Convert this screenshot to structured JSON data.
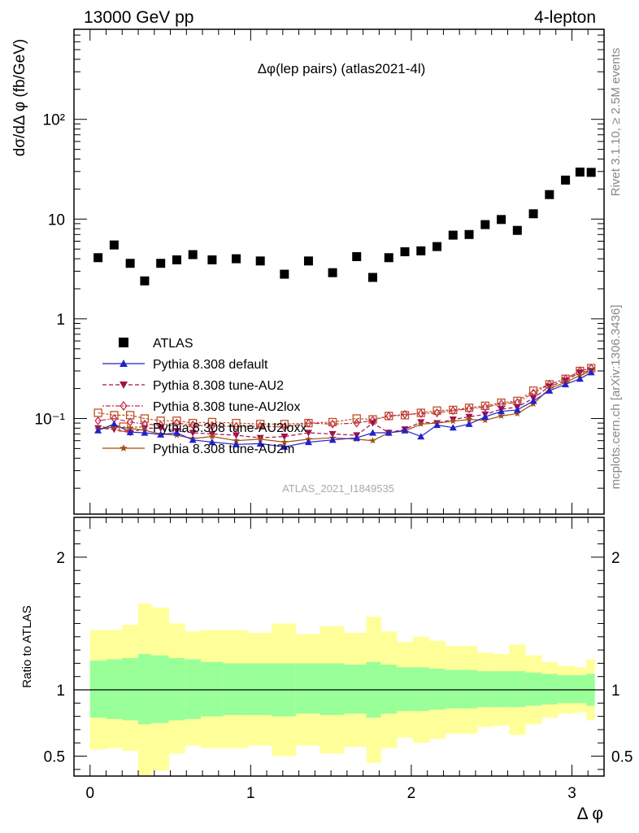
{
  "header": {
    "left": "13000 GeV pp",
    "right": "4-lepton",
    "plot_title": "Δφ(lep pairs) (atlas2021-4l)",
    "watermark": "ATLAS_2021_I1849535",
    "side_right_top": "Rivet 3.1.10, ≥ 2.5M events",
    "side_right_bottom": "mcplots.cern.ch [arXiv:1306.3436]"
  },
  "chart_data": {
    "type": "scatter",
    "xlabel": "Δ φ",
    "ylabel": "dσ/dΔ φ (fb/GeV)",
    "ratio_ylabel": "Ratio to ATLAS",
    "xlim": [
      -0.1,
      3.2
    ],
    "ylim": [
      0.011,
      800
    ],
    "yscale": "log",
    "ratio_ylim": [
      0.35,
      2.3
    ],
    "x_ticks": [
      "0",
      "1",
      "2",
      "3"
    ],
    "y_ticks": [
      "10⁻¹",
      "1",
      "10",
      "10²"
    ],
    "ratio_ticks": [
      "0.5",
      "1",
      "2"
    ],
    "legend_position": "middle-left",
    "x": [
      0.05,
      0.15,
      0.25,
      0.34,
      0.44,
      0.54,
      0.64,
      0.76,
      0.91,
      1.06,
      1.21,
      1.36,
      1.51,
      1.66,
      1.76,
      1.86,
      1.96,
      2.06,
      2.16,
      2.26,
      2.36,
      2.46,
      2.56,
      2.66,
      2.76,
      2.86,
      2.96,
      3.05,
      3.12
    ],
    "ratio_bin_edges": [
      0.0,
      0.1,
      0.2,
      0.3,
      0.38,
      0.49,
      0.59,
      0.69,
      0.83,
      0.98,
      1.13,
      1.28,
      1.43,
      1.58,
      1.72,
      1.81,
      1.91,
      2.01,
      2.11,
      2.21,
      2.31,
      2.41,
      2.51,
      2.61,
      2.71,
      2.81,
      2.91,
      3.01,
      3.09,
      3.14
    ],
    "series": [
      {
        "name": "ATLAS",
        "color": "#000000",
        "marker": "square-filled",
        "values": [
          4.1,
          5.5,
          3.6,
          2.4,
          3.6,
          3.9,
          4.4,
          3.9,
          4.0,
          3.8,
          2.8,
          3.8,
          2.9,
          4.2,
          2.6,
          4.1,
          4.7,
          4.8,
          5.3,
          6.9,
          7.0,
          8.8,
          9.9,
          7.7,
          11.3,
          17.6,
          24.6,
          29.6,
          29.4
        ]
      },
      {
        "name": "Pythia 8.308 default",
        "color": "#2222cc",
        "marker": "triangle-up",
        "dash": "",
        "values": [
          0.076,
          0.088,
          0.073,
          0.072,
          0.069,
          0.072,
          0.061,
          0.058,
          0.055,
          0.056,
          0.052,
          0.058,
          0.061,
          0.064,
          0.072,
          0.072,
          0.076,
          0.066,
          0.086,
          0.081,
          0.088,
          0.104,
          0.118,
          0.122,
          0.15,
          0.19,
          0.22,
          0.25,
          0.29
        ]
      },
      {
        "name": "Pythia 8.308 tune-AU2",
        "color": "#a01050",
        "marker": "triangle-down",
        "dash": "5,3",
        "values": [
          0.08,
          0.078,
          0.072,
          0.08,
          0.08,
          0.075,
          0.072,
          0.07,
          0.068,
          0.064,
          0.066,
          0.072,
          0.07,
          0.068,
          0.09,
          0.072,
          0.078,
          0.092,
          0.09,
          0.098,
          0.104,
          0.11,
          0.124,
          0.13,
          0.16,
          0.21,
          0.24,
          0.29,
          0.3
        ]
      },
      {
        "name": "Pythia 8.308 tune-AU2lox",
        "color": "#c03050",
        "marker": "diamond-open",
        "dash": "2,2,6,2",
        "values": [
          0.095,
          0.1,
          0.092,
          0.088,
          0.086,
          0.09,
          0.086,
          0.084,
          0.083,
          0.084,
          0.082,
          0.09,
          0.088,
          0.09,
          0.096,
          0.106,
          0.11,
          0.112,
          0.114,
          0.12,
          0.125,
          0.13,
          0.14,
          0.145,
          0.18,
          0.22,
          0.25,
          0.3,
          0.32
        ]
      },
      {
        "name": "Pythia 8.308 tune-AU2loxx",
        "color": "#c05020",
        "marker": "square-open",
        "dash": "3,2",
        "values": [
          0.114,
          0.108,
          0.108,
          0.1,
          0.095,
          0.095,
          0.09,
          0.092,
          0.09,
          0.088,
          0.088,
          0.09,
          0.092,
          0.1,
          0.098,
          0.106,
          0.108,
          0.114,
          0.12,
          0.122,
          0.128,
          0.134,
          0.144,
          0.15,
          0.19,
          0.22,
          0.25,
          0.3,
          0.32
        ]
      },
      {
        "name": "Pythia 8.308 tune-AU2m",
        "color": "#a05010",
        "marker": "star",
        "dash": "",
        "values": [
          0.078,
          0.082,
          0.08,
          0.076,
          0.07,
          0.068,
          0.063,
          0.066,
          0.06,
          0.062,
          0.058,
          0.062,
          0.064,
          0.062,
          0.06,
          0.072,
          0.075,
          0.088,
          0.09,
          0.094,
          0.098,
          0.096,
          0.106,
          0.112,
          0.14,
          0.2,
          0.23,
          0.27,
          0.3
        ]
      }
    ],
    "ratio_bands": {
      "inner_color": "#99ff99",
      "outer_color": "#ffff99",
      "inner_lo": [
        0.79,
        0.78,
        0.77,
        0.74,
        0.75,
        0.77,
        0.78,
        0.8,
        0.81,
        0.81,
        0.8,
        0.82,
        0.81,
        0.82,
        0.79,
        0.82,
        0.84,
        0.84,
        0.85,
        0.86,
        0.86,
        0.87,
        0.87,
        0.87,
        0.88,
        0.89,
        0.9,
        0.9,
        0.88
      ],
      "inner_hi": [
        1.22,
        1.23,
        1.24,
        1.27,
        1.26,
        1.24,
        1.23,
        1.21,
        1.2,
        1.2,
        1.2,
        1.2,
        1.2,
        1.19,
        1.21,
        1.19,
        1.17,
        1.17,
        1.16,
        1.15,
        1.15,
        1.14,
        1.14,
        1.14,
        1.13,
        1.12,
        1.11,
        1.11,
        1.12
      ],
      "outer_lo": [
        0.55,
        0.56,
        0.54,
        0.35,
        0.39,
        0.52,
        0.58,
        0.56,
        0.56,
        0.58,
        0.5,
        0.58,
        0.52,
        0.57,
        0.45,
        0.56,
        0.64,
        0.6,
        0.63,
        0.67,
        0.67,
        0.72,
        0.73,
        0.66,
        0.74,
        0.79,
        0.82,
        0.83,
        0.77
      ],
      "outer_hi": [
        1.45,
        1.45,
        1.49,
        1.65,
        1.62,
        1.5,
        1.44,
        1.45,
        1.45,
        1.43,
        1.5,
        1.42,
        1.48,
        1.43,
        1.55,
        1.44,
        1.36,
        1.4,
        1.37,
        1.33,
        1.33,
        1.28,
        1.27,
        1.34,
        1.26,
        1.21,
        1.18,
        1.17,
        1.23
      ]
    }
  }
}
